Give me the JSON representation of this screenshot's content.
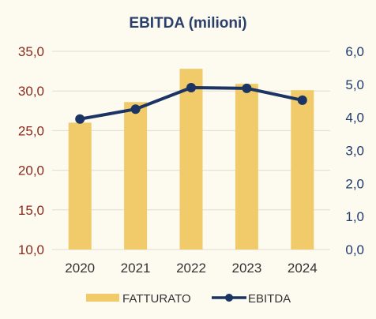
{
  "chart_data": {
    "type": "bar",
    "title": "EBITDA (milioni)",
    "categories": [
      "2020",
      "2021",
      "2022",
      "2023",
      "2024"
    ],
    "series": [
      {
        "name": "FATTURATO",
        "type": "bar",
        "axis": "left",
        "color": "#f1cb6a",
        "values": [
          26.0,
          28.6,
          32.8,
          30.9,
          30.1
        ]
      },
      {
        "name": "EBITDA",
        "type": "line",
        "axis": "right",
        "color": "#1c3463",
        "values": [
          3.95,
          4.25,
          4.9,
          4.88,
          4.52
        ]
      }
    ],
    "y_left": {
      "min": 10,
      "max": 35,
      "step": 5,
      "tick_labels": [
        "10,0",
        "15,0",
        "20,0",
        "25,0",
        "30,0",
        "35,0"
      ]
    },
    "y_right": {
      "min": 0,
      "max": 6,
      "step": 1,
      "tick_labels": [
        "0,0",
        "1,0",
        "2,0",
        "3,0",
        "4,0",
        "5,0",
        "6,0"
      ]
    },
    "grid": true,
    "legend": "bottom"
  }
}
